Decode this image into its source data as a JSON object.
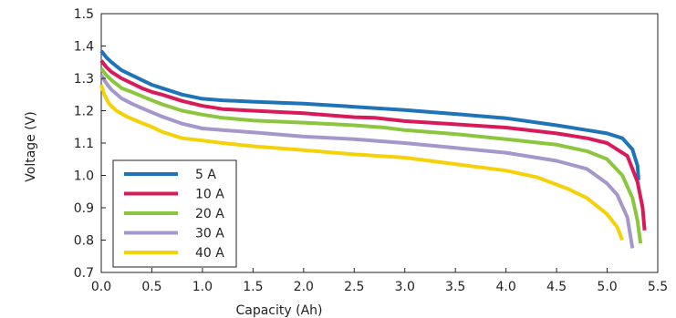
{
  "chart_data": {
    "type": "line",
    "title": "",
    "xlabel": "Capacity (Ah)",
    "ylabel": "Voltage (V)",
    "xlim": [
      0.0,
      5.5
    ],
    "ylim": [
      0.7,
      1.5
    ],
    "xticks": [
      "0.0",
      "0.5",
      "1.0",
      "1.5",
      "2.0",
      "2.5",
      "3.0",
      "3.5",
      "4.0",
      "4.5",
      "5.0",
      "5.5"
    ],
    "yticks": [
      "0.7",
      "0.8",
      "0.9",
      "1.0",
      "1.1",
      "1.2",
      "1.3",
      "1.4",
      "1.5"
    ],
    "grid": false,
    "legend_position": "bottom-left",
    "series": [
      {
        "name": "5 A",
        "color": "#1f73b7",
        "points": [
          [
            0,
            1.385
          ],
          [
            0.05,
            1.365
          ],
          [
            0.1,
            1.35
          ],
          [
            0.2,
            1.325
          ],
          [
            0.3,
            1.31
          ],
          [
            0.4,
            1.295
          ],
          [
            0.5,
            1.28
          ],
          [
            0.6,
            1.27
          ],
          [
            0.8,
            1.25
          ],
          [
            1.0,
            1.237
          ],
          [
            1.2,
            1.232
          ],
          [
            1.5,
            1.228
          ],
          [
            2.0,
            1.222
          ],
          [
            2.5,
            1.212
          ],
          [
            3.0,
            1.202
          ],
          [
            3.5,
            1.19
          ],
          [
            4.0,
            1.177
          ],
          [
            4.5,
            1.155
          ],
          [
            4.8,
            1.14
          ],
          [
            5.0,
            1.13
          ],
          [
            5.15,
            1.115
          ],
          [
            5.25,
            1.08
          ],
          [
            5.3,
            1.03
          ],
          [
            5.31,
            0.985
          ]
        ]
      },
      {
        "name": "10 A",
        "color": "#d91a5a",
        "points": [
          [
            0,
            1.355
          ],
          [
            0.05,
            1.335
          ],
          [
            0.1,
            1.32
          ],
          [
            0.2,
            1.3
          ],
          [
            0.3,
            1.285
          ],
          [
            0.4,
            1.27
          ],
          [
            0.5,
            1.258
          ],
          [
            0.6,
            1.25
          ],
          [
            0.8,
            1.23
          ],
          [
            1.0,
            1.215
          ],
          [
            1.2,
            1.205
          ],
          [
            1.5,
            1.2
          ],
          [
            2.0,
            1.192
          ],
          [
            2.5,
            1.18
          ],
          [
            2.7,
            1.178
          ],
          [
            3.0,
            1.168
          ],
          [
            3.5,
            1.158
          ],
          [
            4.0,
            1.148
          ],
          [
            4.5,
            1.13
          ],
          [
            4.8,
            1.115
          ],
          [
            5.0,
            1.1
          ],
          [
            5.2,
            1.06
          ],
          [
            5.3,
            0.98
          ],
          [
            5.35,
            0.9
          ],
          [
            5.37,
            0.83
          ]
        ]
      },
      {
        "name": "20 A",
        "color": "#8cc63e",
        "points": [
          [
            0,
            1.33
          ],
          [
            0.05,
            1.31
          ],
          [
            0.1,
            1.295
          ],
          [
            0.2,
            1.27
          ],
          [
            0.3,
            1.258
          ],
          [
            0.4,
            1.245
          ],
          [
            0.5,
            1.232
          ],
          [
            0.6,
            1.22
          ],
          [
            0.8,
            1.2
          ],
          [
            1.0,
            1.188
          ],
          [
            1.2,
            1.178
          ],
          [
            1.5,
            1.17
          ],
          [
            2.0,
            1.163
          ],
          [
            2.5,
            1.155
          ],
          [
            2.8,
            1.148
          ],
          [
            3.0,
            1.14
          ],
          [
            3.5,
            1.128
          ],
          [
            4.0,
            1.112
          ],
          [
            4.5,
            1.095
          ],
          [
            4.8,
            1.075
          ],
          [
            5.0,
            1.05
          ],
          [
            5.15,
            1.0
          ],
          [
            5.25,
            0.93
          ],
          [
            5.3,
            0.86
          ],
          [
            5.33,
            0.79
          ]
        ]
      },
      {
        "name": "30 A",
        "color": "#a597c9",
        "points": [
          [
            0,
            1.31
          ],
          [
            0.05,
            1.285
          ],
          [
            0.1,
            1.265
          ],
          [
            0.2,
            1.238
          ],
          [
            0.3,
            1.222
          ],
          [
            0.4,
            1.208
          ],
          [
            0.5,
            1.195
          ],
          [
            0.6,
            1.182
          ],
          [
            0.8,
            1.16
          ],
          [
            1.0,
            1.145
          ],
          [
            1.2,
            1.14
          ],
          [
            1.5,
            1.133
          ],
          [
            2.0,
            1.12
          ],
          [
            2.5,
            1.112
          ],
          [
            3.0,
            1.1
          ],
          [
            3.5,
            1.085
          ],
          [
            4.0,
            1.07
          ],
          [
            4.5,
            1.045
          ],
          [
            4.8,
            1.02
          ],
          [
            5.0,
            0.975
          ],
          [
            5.1,
            0.94
          ],
          [
            5.2,
            0.87
          ],
          [
            5.25,
            0.775
          ]
        ]
      },
      {
        "name": "40 A",
        "color": "#f5d10a",
        "points": [
          [
            0,
            1.28
          ],
          [
            0.03,
            1.25
          ],
          [
            0.08,
            1.22
          ],
          [
            0.15,
            1.2
          ],
          [
            0.25,
            1.182
          ],
          [
            0.4,
            1.162
          ],
          [
            0.5,
            1.15
          ],
          [
            0.6,
            1.135
          ],
          [
            0.8,
            1.115
          ],
          [
            1.0,
            1.108
          ],
          [
            1.2,
            1.1
          ],
          [
            1.5,
            1.09
          ],
          [
            2.0,
            1.078
          ],
          [
            2.5,
            1.065
          ],
          [
            3.0,
            1.055
          ],
          [
            3.5,
            1.035
          ],
          [
            4.0,
            1.015
          ],
          [
            4.3,
            0.995
          ],
          [
            4.6,
            0.96
          ],
          [
            4.8,
            0.93
          ],
          [
            5.0,
            0.88
          ],
          [
            5.1,
            0.84
          ],
          [
            5.15,
            0.8
          ]
        ]
      }
    ]
  }
}
